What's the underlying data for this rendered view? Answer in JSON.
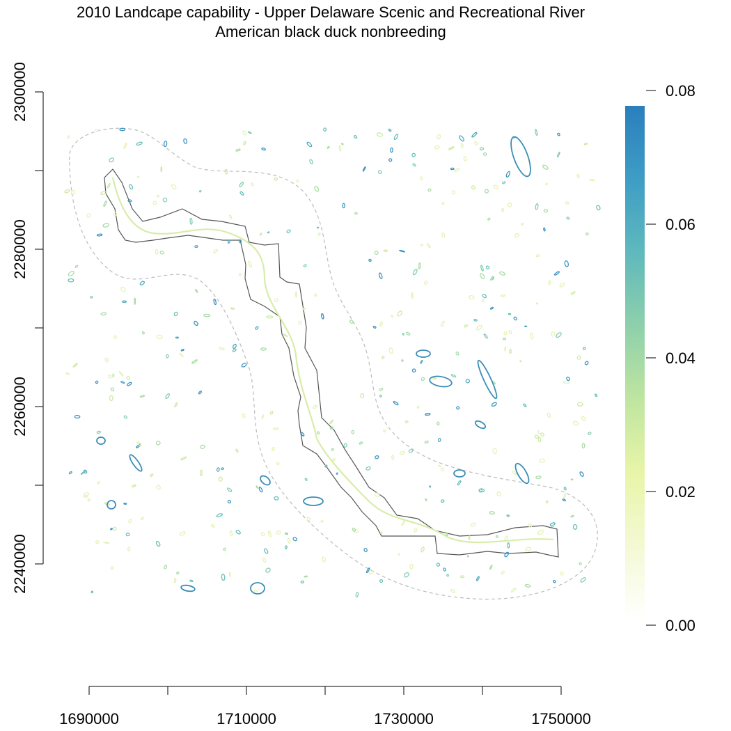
{
  "title": {
    "line1": "2010 Landcape capability - Upper Delaware Scenic and Recreational River",
    "line2": "American black duck nonbreeding"
  },
  "map": {
    "x_axis": {
      "ticks": [
        1690000,
        1700000,
        1710000,
        1720000,
        1730000,
        1740000,
        1750000
      ],
      "labels": [
        "1690000",
        "1710000",
        "1730000",
        "1750000"
      ]
    },
    "y_axis": {
      "ticks": [
        2240000,
        2250000,
        2260000,
        2270000,
        2280000,
        2290000,
        2300000
      ],
      "labels": [
        "2240000",
        "2260000",
        "2280000",
        "2300000"
      ]
    },
    "colors": {
      "outline": "#555555",
      "buffer": "#bbbbbb"
    }
  },
  "legend": {
    "range": [
      0,
      0.08
    ],
    "labels": [
      "0.08",
      "0.06",
      "0.04",
      "0.02",
      "0.00"
    ],
    "ramp": [
      "#ffffff",
      "#f4f9d4",
      "#e8f5a8",
      "#bfe5a0",
      "#8ed0ab",
      "#5fb9bd",
      "#3e9dc5",
      "#2a7fbc"
    ]
  }
}
